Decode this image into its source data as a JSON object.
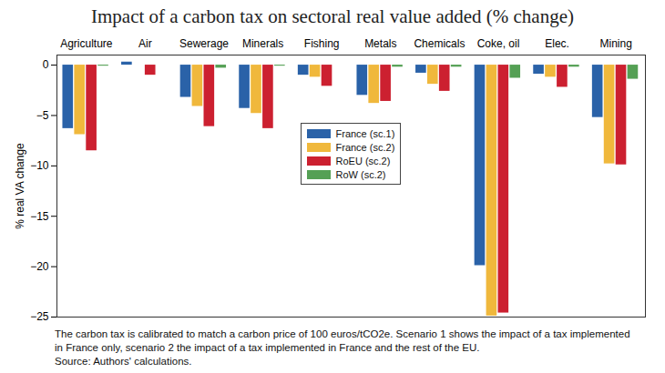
{
  "chart_data": {
    "type": "bar",
    "title": "Impact of a carbon tax on sectoral real value added (% change)",
    "ylabel": "% real VA change",
    "caption": "The carbon tax is calibrated to match a carbon price of 100 euros/tCO2e. Scenario 1 shows the impact of a tax implemented in France only, scenario 2 the impact of a tax implemented in France and the rest of the EU.",
    "source": "Source: Authors' calculations.",
    "categories": [
      "Agriculture",
      "Air",
      "Sewerage",
      "Minerals",
      "Fishing",
      "Metals",
      "Chemicals",
      "Coke, oil",
      "Elec.",
      "Mining"
    ],
    "series": [
      {
        "name": "France (sc.1)",
        "color": "#2a62a8",
        "values": [
          -6.3,
          0.3,
          -3.2,
          -4.3,
          -1.0,
          -3.0,
          -0.8,
          -19.9,
          -0.9,
          -5.2
        ]
      },
      {
        "name": "France (sc.2)",
        "color": "#f0b83c",
        "values": [
          -6.9,
          0.0,
          -4.1,
          -4.8,
          -1.2,
          -3.8,
          -1.9,
          -24.9,
          -1.2,
          -9.8
        ]
      },
      {
        "name": "RoEU (sc.2)",
        "color": "#cc2030",
        "values": [
          -8.5,
          -1.0,
          -6.1,
          -6.3,
          -2.1,
          -3.6,
          -2.6,
          -24.6,
          -2.2,
          -9.9
        ]
      },
      {
        "name": "RoW (sc.2)",
        "color": "#55a055",
        "values": [
          -0.1,
          0.0,
          -0.3,
          -0.1,
          0.0,
          -0.2,
          -0.2,
          -1.3,
          -0.2,
          -1.4
        ]
      }
    ],
    "ylim": [
      -25,
      1
    ],
    "yticks": [
      -25,
      -20,
      -15,
      -10,
      -5,
      0
    ],
    "grid": false,
    "legend": "center"
  }
}
